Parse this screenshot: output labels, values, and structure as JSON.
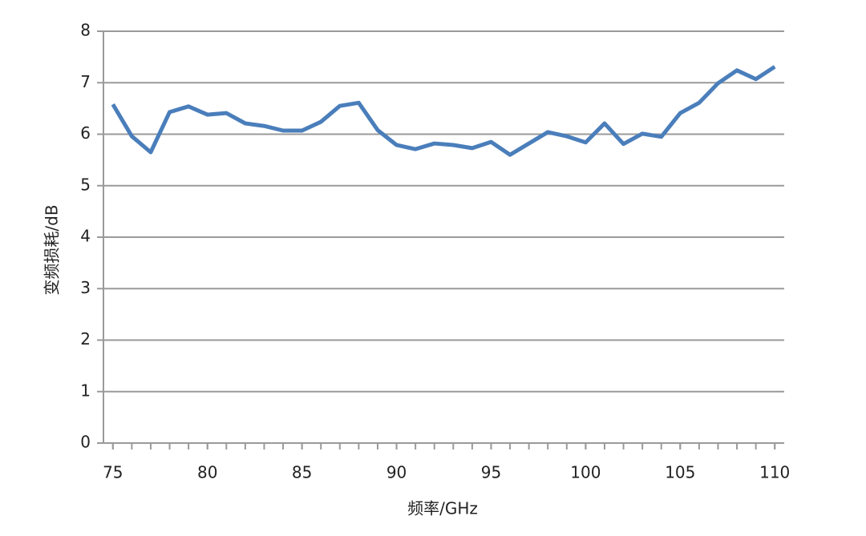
{
  "chart_data": {
    "type": "line",
    "x_label": "频率/GHz",
    "y_label": "变频损耗/dB",
    "x": [
      75,
      76,
      77,
      78,
      79,
      80,
      81,
      82,
      83,
      84,
      85,
      86,
      87,
      88,
      89,
      90,
      91,
      92,
      93,
      94,
      95,
      96,
      97,
      98,
      99,
      100,
      101,
      102,
      103,
      104,
      105,
      106,
      107,
      108,
      109,
      110
    ],
    "series": [
      {
        "color": "#4a7ebb",
        "values": [
          6.58,
          5.96,
          5.65,
          6.43,
          6.54,
          6.38,
          6.41,
          6.21,
          6.16,
          6.07,
          6.07,
          6.24,
          6.55,
          6.61,
          6.08,
          5.79,
          5.71,
          5.82,
          5.79,
          5.73,
          5.85,
          5.6,
          5.82,
          6.04,
          5.96,
          5.84,
          6.21,
          5.81,
          6.01,
          5.95,
          6.41,
          6.61,
          6.99,
          7.24,
          7.07,
          7.31
        ]
      }
    ],
    "xlim": [
      74.5,
      110.5
    ],
    "xticks": [
      75,
      80,
      85,
      90,
      95,
      100,
      105,
      110
    ],
    "ylim": [
      0,
      8
    ],
    "yticks": [
      0,
      1,
      2,
      3,
      4,
      5,
      6,
      7,
      8
    ],
    "grid": true
  }
}
